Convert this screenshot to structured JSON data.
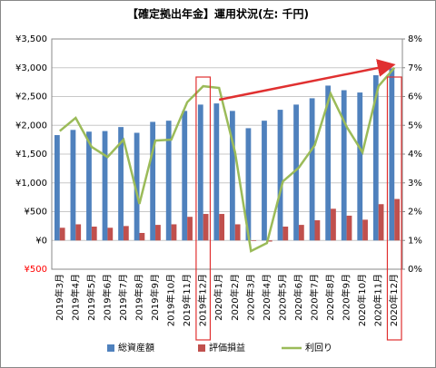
{
  "chart_data": {
    "type": "bar",
    "title": "【確定拠出年金】運用状況(左: 千円)",
    "categories": [
      "2019年3月",
      "2019年4月",
      "2019年5月",
      "2019年6月",
      "2019年7月",
      "2019年8月",
      "2019年9月",
      "2019年10月",
      "2019年11月",
      "2019年12月",
      "2020年1月",
      "2020年2月",
      "2020年3月",
      "2020年4月",
      "2020年5月",
      "2020年6月",
      "2020年7月",
      "2020年8月",
      "2020年9月",
      "2020年10月",
      "2020年11月",
      "2020年12月"
    ],
    "series": [
      {
        "name": "総資産額",
        "color": "#4f81bd",
        "type": "bar",
        "values": [
          1830,
          1920,
          1890,
          1900,
          1970,
          1870,
          2060,
          2080,
          2250,
          2360,
          2380,
          2250,
          1950,
          2080,
          2270,
          2360,
          2470,
          2690,
          2610,
          2570,
          2870,
          2990
        ]
      },
      {
        "name": "評価損益",
        "color": "#c0504d",
        "type": "bar",
        "values": [
          220,
          280,
          240,
          220,
          250,
          130,
          270,
          280,
          410,
          460,
          460,
          280,
          -10,
          -20,
          240,
          270,
          350,
          550,
          430,
          360,
          630,
          720
        ]
      },
      {
        "name": "利回り",
        "color": "#9bbb59",
        "type": "line",
        "axis": "y2",
        "values": [
          4.8,
          5.26,
          4.25,
          3.9,
          4.5,
          2.27,
          4.47,
          4.5,
          5.8,
          6.36,
          6.3,
          4.06,
          0.63,
          0.91,
          3.05,
          3.53,
          4.31,
          6.1,
          4.95,
          4.06,
          6.36,
          7.0
        ]
      }
    ],
    "ylim": [
      -500,
      3500
    ],
    "yticks": [
      {
        "value": -500,
        "label": "¥500",
        "color": "#ff0000"
      },
      {
        "value": 0,
        "label": "¥0"
      },
      {
        "value": 500,
        "label": "¥500"
      },
      {
        "value": 1000,
        "label": "¥1,000"
      },
      {
        "value": 1500,
        "label": "¥1,500"
      },
      {
        "value": 2000,
        "label": "¥2,000"
      },
      {
        "value": 2500,
        "label": "¥2,500"
      },
      {
        "value": 3000,
        "label": "¥3,000"
      },
      {
        "value": 3500,
        "label": "¥3,500"
      }
    ],
    "y2lim": [
      0,
      8
    ],
    "y2ticks": [
      {
        "value": 0,
        "label": "0%"
      },
      {
        "value": 1,
        "label": "1%"
      },
      {
        "value": 2,
        "label": "2%"
      },
      {
        "value": 3,
        "label": "3%"
      },
      {
        "value": 4,
        "label": "4%"
      },
      {
        "value": 5,
        "label": "5%"
      },
      {
        "value": 6,
        "label": "6%"
      },
      {
        "value": 7,
        "label": "7%"
      },
      {
        "value": 8,
        "label": "8%"
      }
    ],
    "grid": true,
    "legend": "bottom"
  }
}
